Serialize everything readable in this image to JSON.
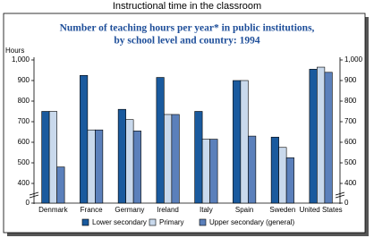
{
  "page_title": "Instructional time in the classroom",
  "chart_data": {
    "type": "bar",
    "title": "Number of teaching hours per year* in public institutions,",
    "subtitle": "by school level and country:  1994",
    "y_label": "Hours",
    "categories": [
      "Denmark",
      "France",
      "Germany",
      "Ireland",
      "Italy",
      "Spain",
      "Sweden",
      "United States"
    ],
    "series": [
      {
        "name": "Lower secondary",
        "color": "#1a5a9e",
        "values": [
          750,
          925,
          760,
          915,
          750,
          900,
          625,
          955
        ]
      },
      {
        "name": "Primary",
        "color": "#c9d9ec",
        "values": [
          750,
          660,
          710,
          735,
          615,
          900,
          575,
          965
        ]
      },
      {
        "name": "Upper secondary (general)",
        "color": "#5b80bb",
        "values": [
          480,
          660,
          655,
          735,
          615,
          630,
          525,
          940
        ]
      }
    ],
    "ylim": [
      0,
      1000
    ],
    "axis_break": [
      0,
      400
    ],
    "yticks": [
      0,
      400,
      500,
      600,
      700,
      800,
      900,
      {
        "value": 1000,
        "label": "1,000"
      }
    ],
    "right_axis": true,
    "legend": "bottom"
  }
}
